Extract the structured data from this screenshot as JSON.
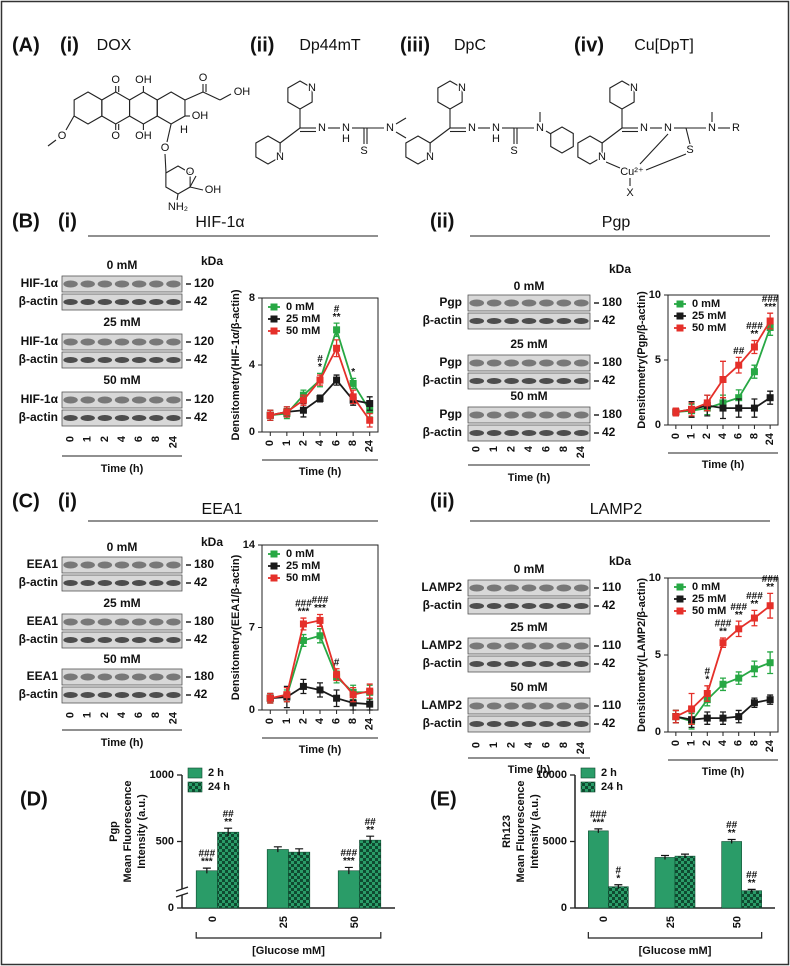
{
  "panel_labels": {
    "A": "(A)",
    "B": "(B)",
    "C": "(C)",
    "D": "(D)",
    "E": "(E)"
  },
  "structures": [
    {
      "numeral": "(i)",
      "name": "DOX",
      "atoms": [
        "O",
        "OH",
        "O",
        "OH",
        "OH",
        "O",
        "OH",
        "O",
        "H",
        "O",
        "O",
        "OH",
        "NH₂"
      ]
    },
    {
      "numeral": "(ii)",
      "name": "Dp44mT",
      "atoms": [
        "N",
        "N",
        "N",
        "N",
        "H",
        "S",
        "N"
      ]
    },
    {
      "numeral": "(iii)",
      "name": "DpC",
      "atoms": [
        "N",
        "N",
        "N",
        "N",
        "H",
        "S",
        "N"
      ]
    },
    {
      "numeral": "(iv)",
      "name": "Cu[DpT]",
      "atoms": [
        "N",
        "N",
        "N",
        "N",
        "S",
        "N",
        "R",
        "Cu²⁺",
        "X"
      ]
    }
  ],
  "blots": [
    {
      "numeral": "(i)",
      "title": "HIF-1α",
      "kda": "kDa",
      "groups": [
        {
          "condition": "0 mM",
          "color": "#2e9a3c",
          "rows": [
            {
              "label": "HIF-1α",
              "size": "120"
            },
            {
              "label": "β-actin",
              "size": "42"
            }
          ]
        },
        {
          "condition": "25 mM",
          "color": "#111111",
          "rows": [
            {
              "label": "HIF-1α",
              "size": "120"
            },
            {
              "label": "β-actin",
              "size": "42"
            }
          ]
        },
        {
          "condition": "50 mM",
          "color": "#d62a20",
          "rows": [
            {
              "label": "HIF-1α",
              "size": "120"
            },
            {
              "label": "β-actin",
              "size": "42"
            }
          ]
        }
      ],
      "lanes": [
        "0",
        "1",
        "2",
        "4",
        "6",
        "8",
        "24"
      ],
      "xlabel": "Time (h)"
    },
    {
      "numeral": "(ii)",
      "title": "Pgp",
      "kda": "kDa",
      "groups": [
        {
          "condition": "0 mM",
          "color": "#2e9a3c",
          "rows": [
            {
              "label": "Pgp",
              "size": "180"
            },
            {
              "label": "β-actin",
              "size": "42"
            }
          ]
        },
        {
          "condition": "25 mM",
          "color": "#111111",
          "rows": [
            {
              "label": "Pgp",
              "size": "180"
            },
            {
              "label": "β-actin",
              "size": "42"
            }
          ]
        },
        {
          "condition": "50 mM",
          "color": "#d62a20",
          "rows": [
            {
              "label": "Pgp",
              "size": "180"
            },
            {
              "label": "β-actin",
              "size": "42"
            }
          ]
        }
      ],
      "lanes": [
        "0",
        "1",
        "2",
        "4",
        "6",
        "8",
        "24"
      ],
      "xlabel": "Time (h)"
    },
    {
      "numeral": "(i)",
      "title": "EEA1",
      "kda": "kDa",
      "groups": [
        {
          "condition": "0 mM",
          "color": "#2e9a3c",
          "rows": [
            {
              "label": "EEA1",
              "size": "180"
            },
            {
              "label": "β-actin",
              "size": "42"
            }
          ]
        },
        {
          "condition": "25 mM",
          "color": "#111111",
          "rows": [
            {
              "label": "EEA1",
              "size": "180"
            },
            {
              "label": "β-actin",
              "size": "42"
            }
          ]
        },
        {
          "condition": "50 mM",
          "color": "#d62a20",
          "rows": [
            {
              "label": "EEA1",
              "size": "180"
            },
            {
              "label": "β-actin",
              "size": "42"
            }
          ]
        }
      ],
      "lanes": [
        "0",
        "1",
        "2",
        "4",
        "6",
        "8",
        "24"
      ],
      "xlabel": "Time (h)"
    },
    {
      "numeral": "(ii)",
      "title": "LAMP2",
      "kda": "kDa",
      "groups": [
        {
          "condition": "0 mM",
          "color": "#2e9a3c",
          "rows": [
            {
              "label": "LAMP2",
              "size": "110"
            },
            {
              "label": "β-actin",
              "size": "42"
            }
          ]
        },
        {
          "condition": "25 mM",
          "color": "#111111",
          "rows": [
            {
              "label": "LAMP2",
              "size": "110"
            },
            {
              "label": "β-actin",
              "size": "42"
            }
          ]
        },
        {
          "condition": "50 mM",
          "color": "#d62a20",
          "rows": [
            {
              "label": "LAMP2",
              "size": "110"
            },
            {
              "label": "β-actin",
              "size": "42"
            }
          ]
        }
      ],
      "lanes": [
        "0",
        "1",
        "2",
        "4",
        "6",
        "8",
        "24"
      ],
      "xlabel": "Time (h)"
    }
  ],
  "chart_data": [
    {
      "type": "line",
      "ylabel": "Densitometry(HIF-1α/β-actin)",
      "xlabel": "Time (h)",
      "categories": [
        "0",
        "1",
        "2",
        "4",
        "6",
        "8",
        "24"
      ],
      "ylim": [
        0,
        8
      ],
      "yticks": [
        0,
        4,
        8
      ],
      "legend": "upper left",
      "series": [
        {
          "name": "0 mM",
          "color": "#27a844",
          "values": [
            1.0,
            1.1,
            2.2,
            3.1,
            6.1,
            2.9,
            1.3
          ],
          "errors": [
            0.3,
            0.3,
            0.3,
            0.4,
            0.4,
            0.3,
            0.4
          ]
        },
        {
          "name": "25 mM",
          "color": "#1a1a1a",
          "values": [
            1.0,
            1.2,
            1.3,
            2.0,
            3.1,
            1.9,
            1.7
          ],
          "errors": [
            0.3,
            0.3,
            0.4,
            0.2,
            0.3,
            0.3,
            0.4
          ]
        },
        {
          "name": "50 mM",
          "color": "#e5302a",
          "values": [
            1.0,
            1.2,
            1.9,
            3.1,
            5.0,
            2.1,
            0.7
          ],
          "errors": [
            0.3,
            0.3,
            0.3,
            0.3,
            0.5,
            0.4,
            0.4
          ]
        }
      ],
      "annotations": [
        {
          "at": "4",
          "lines": [
            "#",
            "*"
          ]
        },
        {
          "at": "6",
          "lines": [
            "#",
            "**"
          ]
        },
        {
          "at": "8",
          "lines": [
            "*"
          ]
        }
      ]
    },
    {
      "type": "line",
      "ylabel": "Densitometry(Pgp/β-actin)",
      "xlabel": "Time (h)",
      "categories": [
        "0",
        "1",
        "2",
        "4",
        "6",
        "8",
        "24"
      ],
      "ylim": [
        0,
        10
      ],
      "yticks": [
        0,
        5,
        10
      ],
      "legend": "upper left",
      "series": [
        {
          "name": "0 mM",
          "color": "#27a844",
          "values": [
            1.0,
            1.1,
            1.3,
            1.7,
            2.1,
            4.1,
            7.5
          ],
          "errors": [
            0.3,
            0.5,
            0.5,
            0.6,
            0.6,
            0.5,
            0.6
          ]
        },
        {
          "name": "25 mM",
          "color": "#1a1a1a",
          "values": [
            1.0,
            1.2,
            1.5,
            1.3,
            1.3,
            1.3,
            2.1
          ],
          "errors": [
            0.3,
            0.6,
            0.8,
            0.8,
            0.7,
            0.7,
            0.5
          ]
        },
        {
          "name": "50 mM",
          "color": "#e5302a",
          "values": [
            1.0,
            1.2,
            1.7,
            3.5,
            4.6,
            6.0,
            8.0
          ],
          "errors": [
            0.3,
            0.5,
            0.6,
            1.4,
            0.6,
            0.5,
            0.6
          ]
        }
      ],
      "annotations": [
        {
          "at": "6",
          "lines": [
            "##"
          ]
        },
        {
          "at": "8",
          "lines": [
            "###",
            "**"
          ]
        },
        {
          "at": "24",
          "lines": [
            "###",
            "***"
          ]
        }
      ]
    },
    {
      "type": "line",
      "ylabel": "Densitometry(EEA1/β-actin)",
      "xlabel": "Time (h)",
      "categories": [
        "0",
        "1",
        "2",
        "4",
        "6",
        "8",
        "24"
      ],
      "ylim": [
        0,
        14
      ],
      "yticks": [
        0,
        7,
        14
      ],
      "legend": "upper left",
      "series": [
        {
          "name": "0 mM",
          "color": "#27a844",
          "values": [
            1.0,
            1.2,
            5.9,
            6.3,
            2.8,
            1.5,
            1.5
          ],
          "errors": [
            0.4,
            0.5,
            0.5,
            0.6,
            0.5,
            0.6,
            0.6
          ]
        },
        {
          "name": "25 mM",
          "color": "#1a1a1a",
          "values": [
            1.0,
            1.1,
            2.0,
            1.7,
            1.0,
            0.6,
            0.5
          ],
          "errors": [
            0.4,
            0.9,
            0.6,
            0.6,
            0.7,
            0.6,
            0.5
          ]
        },
        {
          "name": "50 mM",
          "color": "#e5302a",
          "values": [
            1.0,
            1.3,
            7.3,
            7.6,
            3.0,
            1.3,
            1.6
          ],
          "errors": [
            0.4,
            0.6,
            0.5,
            0.5,
            0.5,
            0.6,
            0.6
          ]
        }
      ],
      "annotations": [
        {
          "at": "2",
          "lines": [
            "###",
            "***"
          ]
        },
        {
          "at": "4",
          "lines": [
            "###",
            "***"
          ]
        },
        {
          "at": "6",
          "lines": [
            "#"
          ]
        }
      ]
    },
    {
      "type": "line",
      "ylabel": "Densitometry(LAMP2/β-actin)",
      "xlabel": "Time (h)",
      "categories": [
        "0",
        "1",
        "2",
        "4",
        "6",
        "8",
        "24"
      ],
      "ylim": [
        0,
        10
      ],
      "yticks": [
        0,
        5,
        10
      ],
      "legend": "upper left",
      "series": [
        {
          "name": "0 mM",
          "color": "#27a844",
          "values": [
            1.0,
            0.7,
            2.1,
            3.1,
            3.5,
            4.1,
            4.5
          ],
          "errors": [
            0.4,
            0.5,
            0.4,
            0.4,
            0.4,
            0.5,
            0.7
          ]
        },
        {
          "name": "25 mM",
          "color": "#1a1a1a",
          "values": [
            1.0,
            0.8,
            0.9,
            0.9,
            1.0,
            1.9,
            2.1
          ],
          "errors": [
            0.4,
            0.5,
            0.4,
            0.4,
            0.4,
            0.3,
            0.3
          ]
        },
        {
          "name": "50 mM",
          "color": "#e5302a",
          "values": [
            1.0,
            1.5,
            2.5,
            5.8,
            6.7,
            7.4,
            8.2
          ],
          "errors": [
            0.4,
            1.0,
            0.5,
            0.3,
            0.5,
            0.5,
            0.8
          ]
        }
      ],
      "annotations": [
        {
          "at": "2",
          "lines": [
            "#",
            "*"
          ]
        },
        {
          "at": "4",
          "lines": [
            "###",
            "**"
          ]
        },
        {
          "at": "6",
          "lines": [
            "###",
            "**"
          ]
        },
        {
          "at": "8",
          "lines": [
            "###",
            "**"
          ]
        },
        {
          "at": "24",
          "lines": [
            "###",
            "**"
          ]
        }
      ]
    },
    {
      "type": "bar",
      "ylabel": [
        "Pgp",
        "Mean Fluorescence",
        "Intensity (a.u.)"
      ],
      "xlabel": "[Glucose mM]",
      "categories": [
        "0",
        "25",
        "50"
      ],
      "ylim": [
        0,
        1000
      ],
      "yticks": [
        0,
        500,
        1000
      ],
      "axis_break": true,
      "legend": "upper left",
      "series": [
        {
          "name": "2 h",
          "color": "#2a9c68",
          "fill": "solid",
          "values": [
            280,
            440,
            280
          ],
          "errors": [
            20,
            20,
            25
          ]
        },
        {
          "name": "24 h",
          "color": "#2a9c68",
          "fill": "checkered",
          "values": [
            570,
            420,
            510
          ],
          "errors": [
            30,
            25,
            30
          ]
        }
      ],
      "annotations": [
        {
          "at": "0",
          "series": "2 h",
          "lines": [
            "###",
            "***"
          ]
        },
        {
          "at": "0",
          "series": "24 h",
          "lines": [
            "##",
            "**"
          ]
        },
        {
          "at": "50",
          "series": "2 h",
          "lines": [
            "###",
            "***"
          ]
        },
        {
          "at": "50",
          "series": "24 h",
          "lines": [
            "##",
            "**"
          ]
        }
      ]
    },
    {
      "type": "bar",
      "ylabel": [
        "Rh123",
        "Mean Fluorescence",
        "Intensity (a.u.)"
      ],
      "xlabel": "[Glucose mM]",
      "categories": [
        "0",
        "25",
        "50"
      ],
      "ylim": [
        0,
        10000
      ],
      "yticks": [
        0,
        5000,
        10000
      ],
      "axis_break": false,
      "legend": "upper left",
      "series": [
        {
          "name": "2 h",
          "color": "#2a9c68",
          "fill": "solid",
          "values": [
            5800,
            3800,
            5000
          ],
          "errors": [
            150,
            150,
            150
          ]
        },
        {
          "name": "24 h",
          "color": "#2a9c68",
          "fill": "checkered",
          "values": [
            1600,
            3900,
            1300
          ],
          "errors": [
            150,
            150,
            100
          ]
        }
      ],
      "annotations": [
        {
          "at": "0",
          "series": "2 h",
          "lines": [
            "###",
            "***"
          ]
        },
        {
          "at": "0",
          "series": "24 h",
          "lines": [
            "#",
            "*"
          ]
        },
        {
          "at": "50",
          "series": "2 h",
          "lines": [
            "##",
            "**"
          ]
        },
        {
          "at": "50",
          "series": "24 h",
          "lines": [
            "##",
            "**"
          ]
        }
      ]
    }
  ]
}
